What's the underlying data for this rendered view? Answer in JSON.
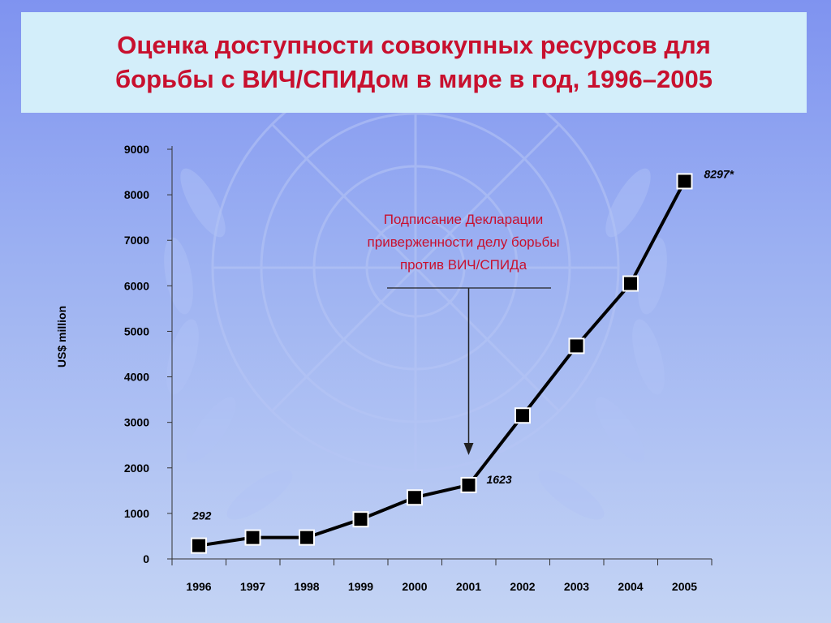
{
  "title": {
    "line1": "Оценка доступности совокупных ресурсов для",
    "line2": "борьбы с ВИЧ/СПИДом в мире в год,  1996–2005"
  },
  "colors": {
    "title": "#c8102e",
    "annotation": "#c8102e",
    "line": "#000000",
    "marker_fill": "#000000",
    "marker_stroke": "#ffffff",
    "background_top": "#7f93f0",
    "background_bottom": "#c4d4f4",
    "title_box": "#d3eefa"
  },
  "chart_data": {
    "type": "line",
    "x": [
      "1996",
      "1997",
      "1998",
      "1999",
      "2000",
      "2001",
      "2002",
      "2003",
      "2004",
      "2005"
    ],
    "series": [
      {
        "values": [
          292,
          470,
          470,
          870,
          1350,
          1623,
          3150,
          4680,
          6050,
          8297
        ]
      }
    ],
    "ylabel": "US$ million",
    "xlabel": "",
    "ylim": [
      0,
      9000
    ],
    "yticks": [
      0,
      1000,
      2000,
      3000,
      4000,
      5000,
      6000,
      7000,
      8000,
      9000
    ],
    "grid": false,
    "marker": "square",
    "data_labels": [
      {
        "x": "1996",
        "text": "292"
      },
      {
        "x": "2001",
        "text": "1623"
      },
      {
        "x": "2005",
        "text": "8297*"
      }
    ],
    "annotation": {
      "lines": [
        "Подписание Декларации",
        "приверженности делу борьбы",
        "против ВИЧ/СПИДа"
      ],
      "arrow_to": "2001"
    }
  }
}
